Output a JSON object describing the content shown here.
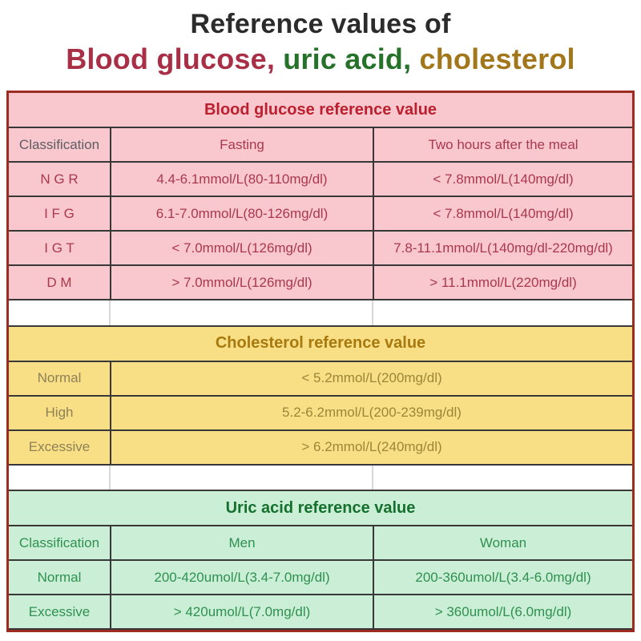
{
  "heading": {
    "line1": "Reference values of",
    "blood_glucose": "Blood glucose,",
    "uric_acid": "uric acid,",
    "cholesterol": "cholesterol"
  },
  "colors": {
    "heading_text": "#2b2b2b",
    "heading_blood_glucose": "#a92f46",
    "heading_uric_acid": "#27722b",
    "heading_cholesterol": "#a2771c",
    "outer_border": "#9e2b20",
    "grid_line": "#383838",
    "blood_glucose_bg": "#f9c8ce",
    "blood_glucose_accent": "#bc1f2e",
    "cholesterol_bg": "#f8df85",
    "cholesterol_accent": "#a8790f",
    "uric_acid_bg": "#cbeed6",
    "uric_acid_accent": "#14702c"
  },
  "chart_data": [
    {
      "type": "table",
      "title": "Blood glucose reference value",
      "columns": [
        "Classification",
        "Fasting",
        "Two hours after the meal"
      ],
      "rows": [
        [
          "N G R",
          "4.4-6.1mmol/L(80-110mg/dl)",
          "< 7.8mmol/L(140mg/dl)"
        ],
        [
          "I F G",
          "6.1-7.0mmol/L(80-126mg/dl)",
          "< 7.8mmol/L(140mg/dl)"
        ],
        [
          "I G T",
          "< 7.0mmol/L(126mg/dl)",
          "7.8-11.1mmol/L(140mg/dl-220mg/dl)"
        ],
        [
          "D M",
          "> 7.0mmol/L(126mg/dl)",
          "> 11.1mmol/L(220mg/dl)"
        ]
      ]
    },
    {
      "type": "table",
      "title": "Cholesterol reference value",
      "columns": [],
      "rows": [
        [
          "Normal",
          "< 5.2mmol/L(200mg/dl)"
        ],
        [
          "High",
          "5.2-6.2mmol/L(200-239mg/dl)"
        ],
        [
          "Excessive",
          "> 6.2mmol/L(240mg/dl)"
        ]
      ]
    },
    {
      "type": "table",
      "title": "Uric acid reference value",
      "columns": [
        "Classification",
        "Men",
        "Woman"
      ],
      "rows": [
        [
          "Normal",
          "200-420umol/L(3.4-7.0mg/dl)",
          "200-360umol/L(3.4-6.0mg/dl)"
        ],
        [
          "Excessive",
          "> 420umol/L(7.0mg/dl)",
          "> 360umol/L(6.0mg/dl)"
        ]
      ]
    }
  ]
}
